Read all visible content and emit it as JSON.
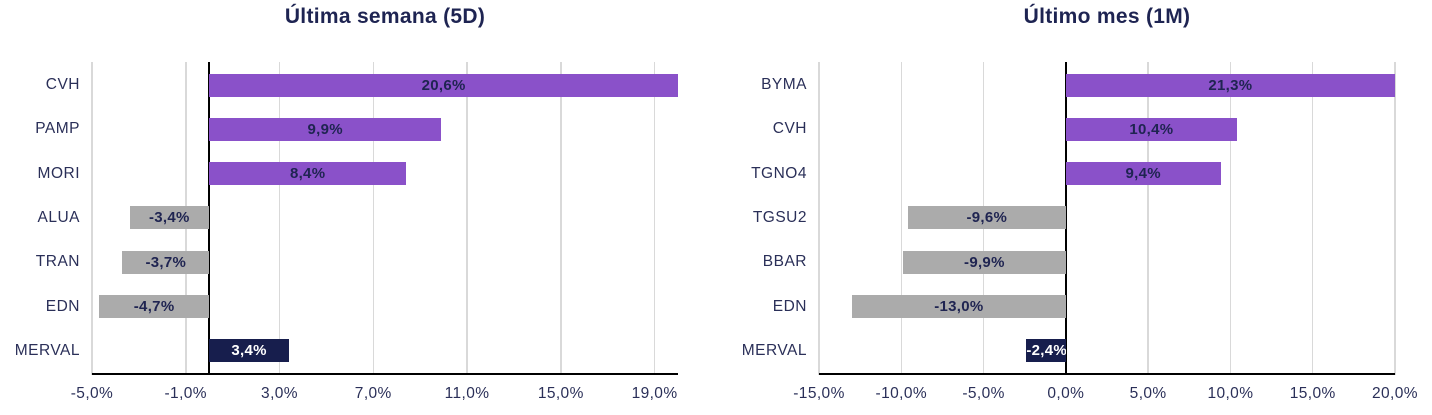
{
  "colors": {
    "positive": "#8A51C9",
    "negative": "#ABABAB",
    "index": "#171E4D",
    "value_text": "#1F2451",
    "value_text_on_index": "#FFFFFF",
    "axis_text": "#2A2F58",
    "title_text": "#1E2452",
    "grid": "#D9D9D9",
    "axis_line": "#000000",
    "background": "#FFFFFF"
  },
  "chart_data": [
    {
      "type": "bar",
      "orientation": "horizontal",
      "title": "Última semana (5D)",
      "categories": [
        "CVH",
        "PAMP",
        "MORI",
        "ALUA",
        "TRAN",
        "EDN",
        "MERVAL"
      ],
      "values": [
        20.6,
        9.9,
        8.4,
        -3.4,
        -3.7,
        -4.7,
        3.4
      ],
      "value_labels": [
        "20,6%",
        "9,9%",
        "8,4%",
        "-3,4%",
        "-3,7%",
        "-4,7%",
        "3,4%"
      ],
      "bar_styles": [
        "positive",
        "positive",
        "positive",
        "negative",
        "negative",
        "negative",
        "index"
      ],
      "xlim": [
        -5,
        20
      ],
      "xticks": [
        -5,
        -1,
        3,
        7,
        11,
        15,
        19
      ],
      "xtick_labels": [
        "-5,0%",
        "-1,0%",
        "3,0%",
        "7,0%",
        "11,0%",
        "15,0%",
        "19,0%"
      ],
      "grid": "vertical",
      "zero_line": true,
      "legend": "none"
    },
    {
      "type": "bar",
      "orientation": "horizontal",
      "title": "Último mes (1M)",
      "categories": [
        "BYMA",
        "CVH",
        "TGNO4",
        "TGSU2",
        "BBAR",
        "EDN",
        "MERVAL"
      ],
      "values": [
        21.3,
        10.4,
        9.4,
        -9.6,
        -9.9,
        -13.0,
        -2.4
      ],
      "value_labels": [
        "21,3%",
        "10,4%",
        "9,4%",
        "-9,6%",
        "-9,9%",
        "-13,0%",
        "-2,4%"
      ],
      "bar_styles": [
        "positive",
        "positive",
        "positive",
        "negative",
        "negative",
        "negative",
        "index"
      ],
      "xlim": [
        -15,
        20
      ],
      "xticks": [
        -15,
        -10,
        -5,
        0,
        5,
        10,
        15,
        20
      ],
      "xtick_labels": [
        "-15,0%",
        "-10,0%",
        "-5,0%",
        "0,0%",
        "5,0%",
        "10,0%",
        "15,0%",
        "20,0%"
      ],
      "grid": "vertical",
      "zero_line": true,
      "legend": "none"
    }
  ]
}
